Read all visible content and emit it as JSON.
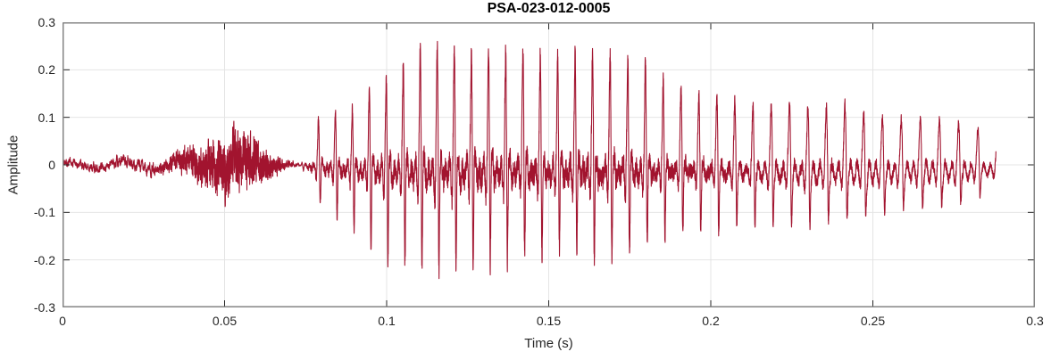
{
  "chart_data": {
    "type": "line",
    "title": "PSA-023-012-0005",
    "xlabel": "Time (s)",
    "ylabel": "Amplitude",
    "xlim": [
      0,
      0.3
    ],
    "ylim": [
      -0.3,
      0.3
    ],
    "x_ticks": [
      0,
      0.05,
      0.1,
      0.15,
      0.2,
      0.25,
      0.3
    ],
    "x_tick_labels": [
      "0",
      "0.05",
      "0.1",
      "0.15",
      "0.2",
      "0.25",
      "0.3"
    ],
    "y_ticks": [
      0.3,
      0.2,
      0.1,
      0,
      -0.1,
      -0.2,
      -0.3
    ],
    "y_tick_labels": [
      "0.3",
      "0.2",
      "0.1",
      "0",
      "-0.1",
      "-0.2",
      "-0.3"
    ],
    "grid": true,
    "legend": null,
    "line_color": "#A2142F",
    "grid_color": "#E4E4E4",
    "axis_color": "#848484",
    "tick_color": "#262626",
    "description": "Speech waveform: low noise 0-0.03 s, unvoiced fricative burst peaking about ±0.1 near 0.05 s, brief gap near 0.07 s, strong voiced segment from about 0.074 s with peak amplitude +0.25 / -0.22 near 0.115 s, slowly decaying to about ±0.07 at signal end near 0.29 s.",
    "signal": {
      "seed": 42,
      "dt": 3.3e-05,
      "end": 0.288,
      "voiced_start": 0.0735,
      "voiced_end": 0.288,
      "onset_ramp": 0.004,
      "f0": [
        [
          0.0735,
          192
        ],
        [
          0.12,
          190
        ],
        [
          0.2,
          180
        ],
        [
          0.288,
          166
        ]
      ],
      "pos_env": [
        [
          0.0735,
          0.06
        ],
        [
          0.08,
          0.105
        ],
        [
          0.088,
          0.115
        ],
        [
          0.096,
          0.16
        ],
        [
          0.104,
          0.205
        ],
        [
          0.113,
          0.25
        ],
        [
          0.12,
          0.24
        ],
        [
          0.128,
          0.245
        ],
        [
          0.137,
          0.24
        ],
        [
          0.146,
          0.235
        ],
        [
          0.154,
          0.22
        ],
        [
          0.163,
          0.24
        ],
        [
          0.171,
          0.225
        ],
        [
          0.179,
          0.215
        ],
        [
          0.187,
          0.17
        ],
        [
          0.196,
          0.15
        ],
        [
          0.205,
          0.14
        ],
        [
          0.214,
          0.125
        ],
        [
          0.223,
          0.13
        ],
        [
          0.232,
          0.12
        ],
        [
          0.241,
          0.125
        ],
        [
          0.25,
          0.105
        ],
        [
          0.259,
          0.095
        ],
        [
          0.268,
          0.1
        ],
        [
          0.277,
          0.09
        ],
        [
          0.288,
          0.06
        ]
      ],
      "neg_env": [
        [
          0.0735,
          0.05
        ],
        [
          0.082,
          0.1
        ],
        [
          0.09,
          0.14
        ],
        [
          0.1,
          0.2
        ],
        [
          0.108,
          0.215
        ],
        [
          0.117,
          0.225
        ],
        [
          0.126,
          0.215
        ],
        [
          0.135,
          0.2
        ],
        [
          0.144,
          0.19
        ],
        [
          0.153,
          0.185
        ],
        [
          0.162,
          0.19
        ],
        [
          0.171,
          0.2
        ],
        [
          0.18,
          0.165
        ],
        [
          0.19,
          0.15
        ],
        [
          0.2,
          0.145
        ],
        [
          0.21,
          0.13
        ],
        [
          0.22,
          0.125
        ],
        [
          0.23,
          0.13
        ],
        [
          0.24,
          0.115
        ],
        [
          0.25,
          0.105
        ],
        [
          0.26,
          0.09
        ],
        [
          0.27,
          0.085
        ],
        [
          0.28,
          0.08
        ],
        [
          0.288,
          0.06
        ]
      ],
      "base_noise": [
        [
          0,
          0.013
        ],
        [
          0.012,
          0.016
        ],
        [
          0.024,
          0.02
        ],
        [
          0.035,
          0.022
        ],
        [
          0.05,
          0.022
        ],
        [
          0.064,
          0.014
        ],
        [
          0.07,
          0.007
        ],
        [
          0.0735,
          0.004
        ],
        [
          0.288,
          0.004
        ]
      ],
      "fric_noise": [
        [
          0,
          0
        ],
        [
          0.03,
          0.004
        ],
        [
          0.038,
          0.035
        ],
        [
          0.045,
          0.07
        ],
        [
          0.052,
          0.095
        ],
        [
          0.058,
          0.085
        ],
        [
          0.064,
          0.04
        ],
        [
          0.069,
          0.01
        ],
        [
          0.0735,
          0
        ]
      ],
      "wobble_hz": 55,
      "wobble_amp": [
        [
          0,
          0.006
        ],
        [
          0.04,
          0.01
        ],
        [
          0.065,
          0.004
        ],
        [
          0.072,
          0
        ]
      ],
      "bright": [
        [
          0.0735,
          1
        ],
        [
          0.18,
          1
        ],
        [
          0.21,
          0.6
        ],
        [
          0.245,
          0.45
        ],
        [
          0.27,
          0.4
        ],
        [
          0.288,
          0.5
        ]
      ],
      "harmonics": [
        0.5,
        0.55,
        0.8,
        1.0,
        0.62,
        0.38,
        0.24,
        0.15,
        0.1,
        0.06
      ],
      "phases": [
        -0.06,
        -0.24,
        -0.54,
        -0.96,
        -1.5,
        -2.16,
        -2.94,
        -3.84,
        -4.86,
        -6.0
      ],
      "texture": 0.1
    }
  }
}
